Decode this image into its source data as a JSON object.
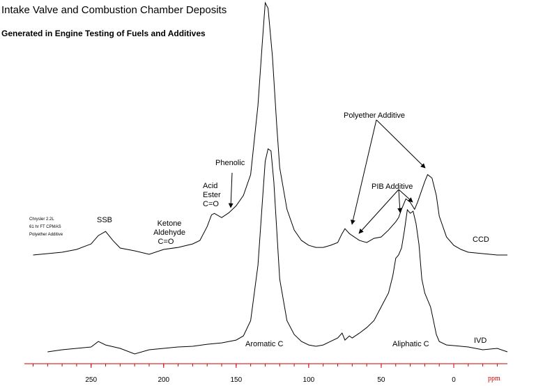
{
  "chart_data": {
    "type": "line",
    "title": "Intake Valve and Combustion Chamber Deposits",
    "subtitle": "Generated in Engine Testing of Fuels and Additives",
    "xlabel": "ppm",
    "xlim": [
      296,
      -37
    ],
    "xticks": [
      250,
      200,
      150,
      100,
      50,
      0
    ],
    "ylim": [
      0,
      365
    ],
    "axis_color": "#cc0000",
    "notes": [
      "Chrysler 2.2L",
      "61 hr FT CPMAS",
      "Polyether Additive"
    ],
    "annotations": [
      "SSB",
      "Ketone",
      "Aldehyde",
      "C=O",
      "Acid",
      "Ester",
      "C=O",
      "Phenolic",
      "Polyether Additive",
      "PIB Additive",
      "Aromatic C",
      "Aliphatic C"
    ],
    "series": [
      {
        "name": "CCD",
        "color": "#000000",
        "x": [
          290,
          280,
          270,
          260,
          250,
          245,
          240,
          235,
          230,
          220,
          210,
          200,
          190,
          180,
          175,
          170,
          167,
          165,
          160,
          155,
          150,
          145,
          140,
          135,
          132,
          130,
          128,
          125,
          122,
          120,
          115,
          110,
          105,
          100,
          95,
          90,
          85,
          80,
          77,
          75,
          72,
          70,
          65,
          60,
          55,
          50,
          45,
          40,
          38,
          36,
          33,
          30,
          27,
          25,
          20,
          18,
          15,
          12,
          10,
          5,
          0,
          -5,
          -10,
          -20,
          -30,
          -37
        ],
        "values": [
          -1,
          1,
          3,
          7,
          15,
          27,
          33,
          20,
          9,
          5,
          0,
          7,
          10,
          15,
          20,
          40,
          57,
          59,
          53,
          60,
          70,
          85,
          115,
          215,
          305,
          363,
          355,
          285,
          185,
          125,
          65,
          35,
          20,
          13,
          10,
          10,
          13,
          17,
          30,
          37,
          30,
          27,
          20,
          17,
          23,
          25,
          35,
          47,
          53,
          65,
          80,
          75,
          65,
          75,
          105,
          115,
          110,
          85,
          55,
          25,
          13,
          7,
          3,
          1,
          -1,
          -1
        ]
      },
      {
        "name": "IVD",
        "color": "#000000",
        "x": [
          280,
          270,
          260,
          250,
          245,
          240,
          230,
          220,
          210,
          200,
          190,
          180,
          170,
          160,
          150,
          145,
          140,
          135,
          132,
          130,
          128,
          126,
          124,
          122,
          120,
          115,
          110,
          105,
          100,
          95,
          90,
          85,
          80,
          77,
          75,
          72,
          70,
          65,
          60,
          55,
          50,
          45,
          42,
          40,
          38,
          36,
          34,
          32,
          30,
          28,
          26,
          24,
          22,
          20,
          18,
          16,
          14,
          12,
          10,
          5,
          0,
          -10,
          -20,
          -30,
          -37
        ],
        "values": [
          0,
          3,
          5,
          7,
          15,
          10,
          5,
          -3,
          3,
          5,
          7,
          8,
          11,
          13,
          17,
          23,
          45,
          125,
          215,
          275,
          293,
          290,
          245,
          175,
          105,
          45,
          25,
          15,
          10,
          8,
          10,
          15,
          20,
          27,
          17,
          23,
          20,
          27,
          35,
          45,
          65,
          85,
          110,
          135,
          140,
          150,
          175,
          205,
          200,
          203,
          185,
          155,
          105,
          85,
          75,
          65,
          45,
          25,
          15,
          10,
          9,
          7,
          3,
          5,
          0
        ]
      }
    ]
  }
}
